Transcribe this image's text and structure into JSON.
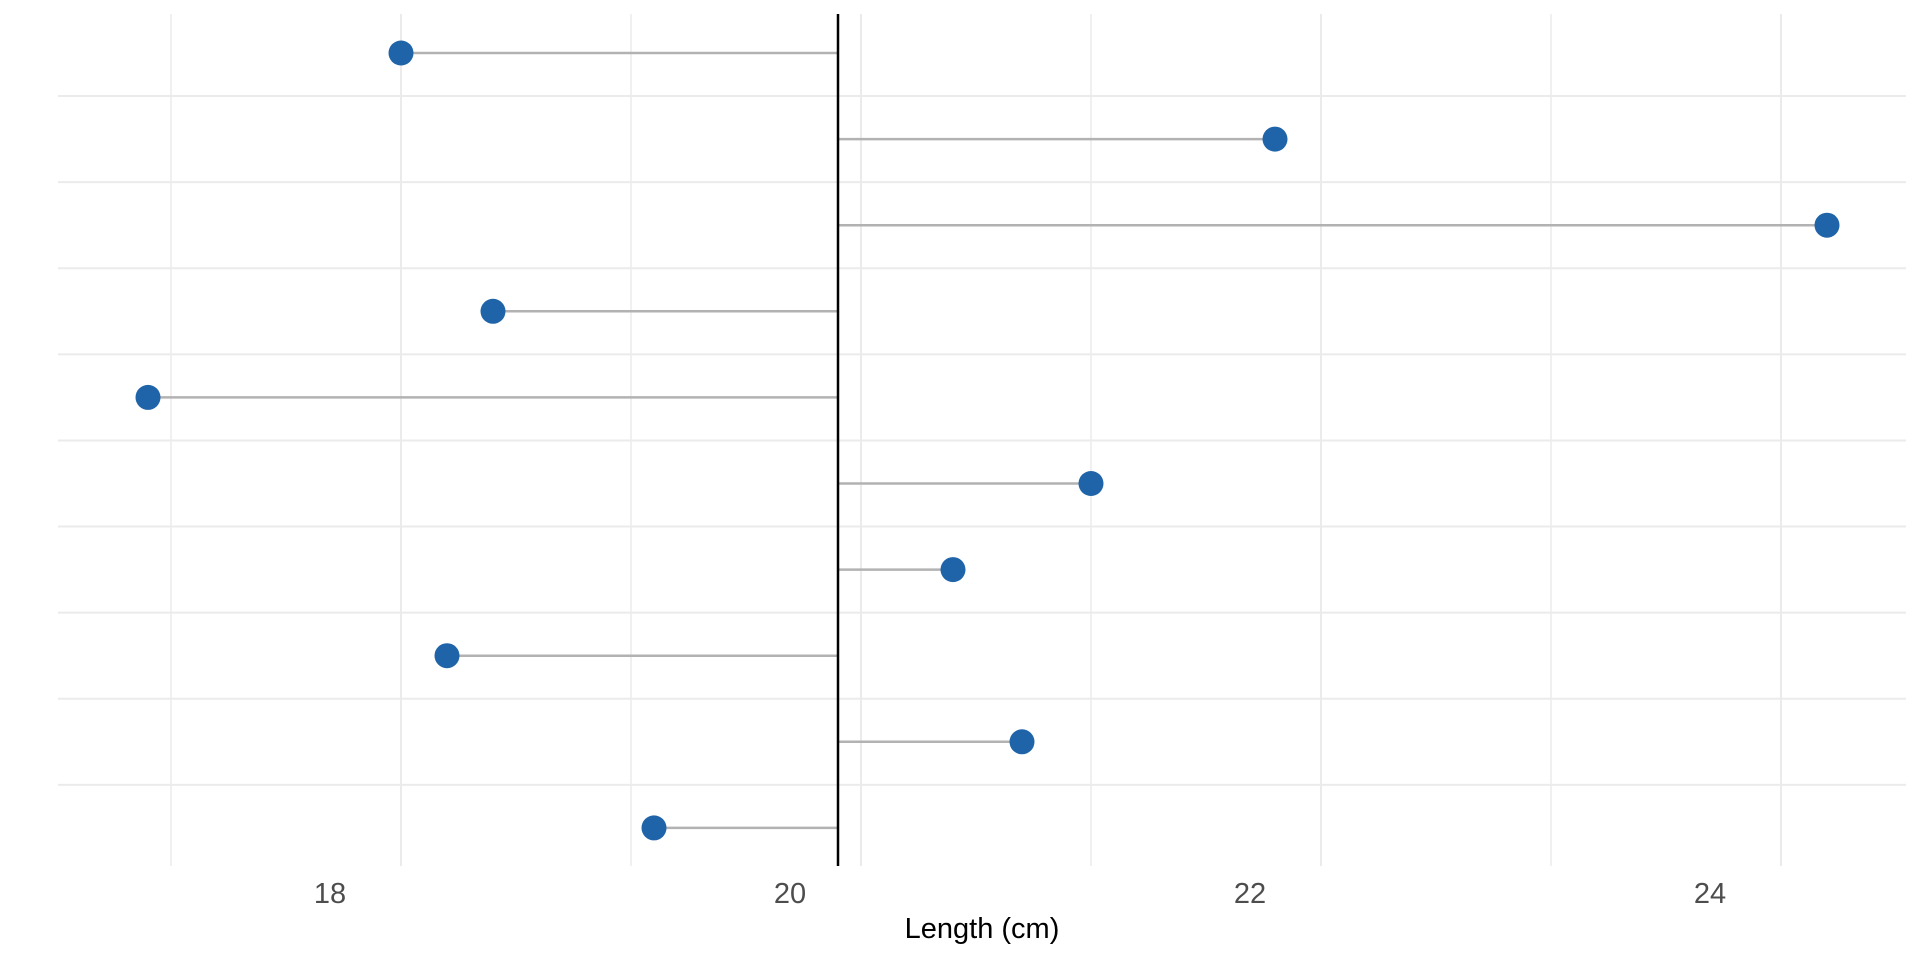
{
  "chart_data": {
    "type": "lollipop",
    "orientation": "horizontal",
    "title": "",
    "xlabel": "Length (cm)",
    "ylabel": "",
    "baseline": 19.9,
    "xlim": [
      16.5,
      24.55
    ],
    "x_ticks": [
      18,
      20,
      22,
      24
    ],
    "x_tick_labels": [
      "18",
      "20",
      "22",
      "24"
    ],
    "values": [
      18.0,
      21.8,
      24.2,
      18.4,
      16.9,
      21.0,
      20.4,
      18.2,
      20.7,
      19.1
    ],
    "y_labels_shown": false,
    "grid": true,
    "point_color": "#1f64a8",
    "stem_color": "#b2b2b2",
    "baseline_color": "#000000"
  }
}
